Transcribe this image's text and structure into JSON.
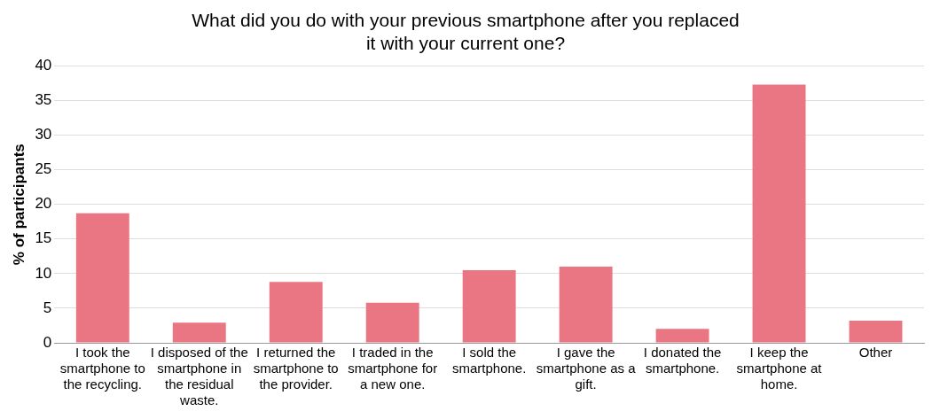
{
  "chart_data": {
    "type": "bar",
    "title": "What did you do with your previous smartphone after you replaced it with your current one?",
    "ylabel": "% of participants",
    "categories": [
      "I took the smartphone to the recycling.",
      "I disposed of the smartphone in the residual waste.",
      "I returned the smartphone to the provider.",
      "I traded in the smartphone for a new one.",
      "I sold the smartphone.",
      "I gave the smartphone as a gift.",
      "I donated the smartphone.",
      "I keep the smartphone at home.",
      "Other"
    ],
    "values": [
      18.7,
      2.9,
      8.8,
      5.8,
      10.5,
      11,
      2,
      37.3,
      3.2
    ],
    "color": "#eb7683",
    "ylim": [
      0,
      40
    ],
    "yticks": [
      0,
      5,
      10,
      15,
      20,
      25,
      30,
      35,
      40
    ],
    "grid": "y"
  }
}
